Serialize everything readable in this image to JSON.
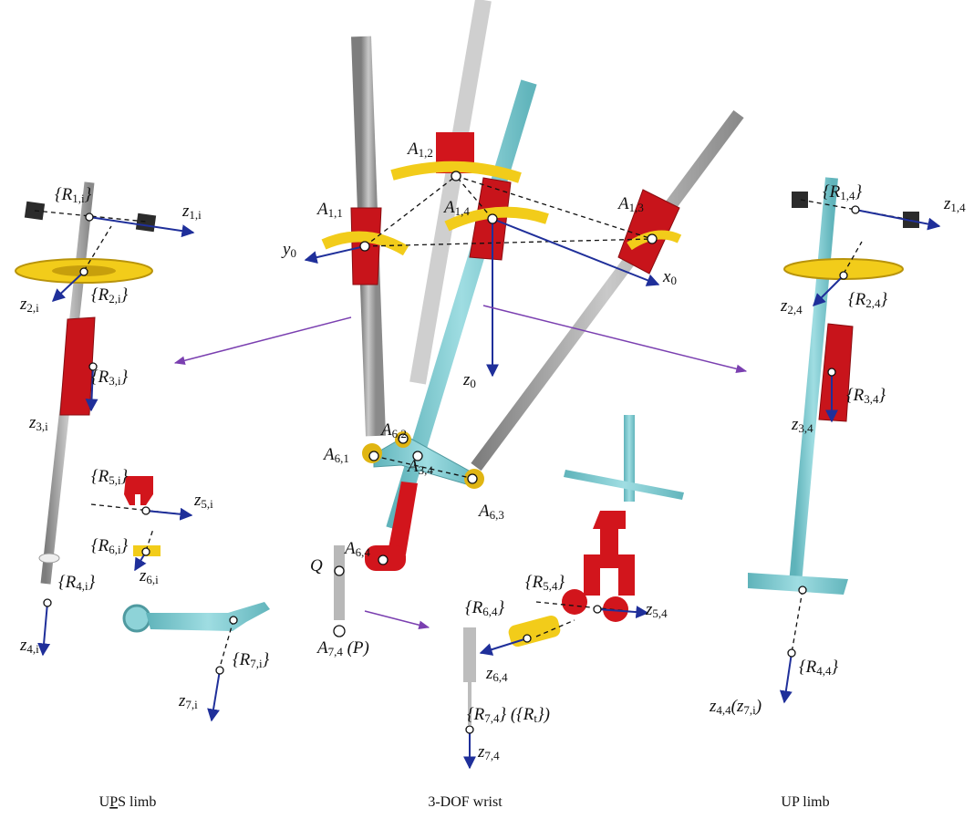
{
  "labels": [
    {
      "parts": [
        {
          "text": "{R"
        },
        {
          "sub": "1,i"
        },
        {
          "text": "}"
        }
      ]
    },
    {
      "parts": [
        {
          "text": "z"
        },
        {
          "sub": "1,i"
        }
      ]
    },
    {
      "parts": [
        {
          "text": "z"
        },
        {
          "sub": "2,i"
        }
      ]
    },
    {
      "parts": [
        {
          "text": "{R"
        },
        {
          "sub": "2,i"
        },
        {
          "text": "}"
        }
      ]
    },
    {
      "parts": [
        {
          "text": "{R"
        },
        {
          "sub": "3,i"
        },
        {
          "text": "}"
        }
      ]
    },
    {
      "parts": [
        {
          "text": "z"
        },
        {
          "sub": "3,i"
        }
      ]
    },
    {
      "parts": [
        {
          "text": "{R"
        },
        {
          "sub": "5,i"
        },
        {
          "text": "}"
        }
      ]
    },
    {
      "parts": [
        {
          "text": "z"
        },
        {
          "sub": "5,i"
        }
      ]
    },
    {
      "parts": [
        {
          "text": "{R"
        },
        {
          "sub": "6,i"
        },
        {
          "text": "}"
        }
      ]
    },
    {
      "parts": [
        {
          "text": "z"
        },
        {
          "sub": "6,i"
        }
      ]
    },
    {
      "parts": [
        {
          "text": "{R"
        },
        {
          "sub": "4,i"
        },
        {
          "text": "}"
        }
      ]
    },
    {
      "parts": [
        {
          "text": "z"
        },
        {
          "sub": "4,i"
        }
      ]
    },
    {
      "parts": [
        {
          "text": "{R"
        },
        {
          "sub": "7,i"
        },
        {
          "text": "}"
        }
      ]
    },
    {
      "parts": [
        {
          "text": "z"
        },
        {
          "sub": "7,i"
        }
      ]
    },
    {
      "parts": [
        {
          "text": "A"
        },
        {
          "sub": "1,2"
        }
      ]
    },
    {
      "parts": [
        {
          "text": "A"
        },
        {
          "sub": "1,1"
        }
      ]
    },
    {
      "parts": [
        {
          "text": "A"
        },
        {
          "sub": "1,4"
        }
      ]
    },
    {
      "parts": [
        {
          "text": "A"
        },
        {
          "sub": "1,3"
        }
      ]
    },
    {
      "parts": [
        {
          "text": "y"
        },
        {
          "sub": "0"
        }
      ]
    },
    {
      "parts": [
        {
          "text": "x"
        },
        {
          "sub": "0"
        }
      ]
    },
    {
      "parts": [
        {
          "text": "z"
        },
        {
          "sub": "0"
        }
      ]
    },
    {
      "parts": [
        {
          "text": "A"
        },
        {
          "sub": "6,2"
        }
      ]
    },
    {
      "parts": [
        {
          "text": "A"
        },
        {
          "sub": "6,1"
        }
      ]
    },
    {
      "parts": [
        {
          "text": "A"
        },
        {
          "sub": "3,4"
        }
      ]
    },
    {
      "parts": [
        {
          "text": "A"
        },
        {
          "sub": "6,3"
        }
      ]
    },
    {
      "parts": [
        {
          "text": "A"
        },
        {
          "sub": "6,4"
        }
      ]
    },
    {
      "parts": [
        {
          "text": "Q"
        }
      ]
    },
    {
      "parts": [
        {
          "text": "A"
        },
        {
          "sub": "7,4"
        },
        {
          "text": " (P)"
        }
      ]
    },
    {
      "parts": [
        {
          "text": "{R"
        },
        {
          "sub": "5,4"
        },
        {
          "text": "}"
        }
      ]
    },
    {
      "parts": [
        {
          "text": "z"
        },
        {
          "sub": "5,4"
        }
      ]
    },
    {
      "parts": [
        {
          "text": "{R"
        },
        {
          "sub": "6,4"
        },
        {
          "text": "}"
        }
      ]
    },
    {
      "parts": [
        {
          "text": "z"
        },
        {
          "sub": "6,4"
        }
      ]
    },
    {
      "parts": [
        {
          "text": "{R"
        },
        {
          "sub": "7,4"
        },
        {
          "text": "} ({R"
        },
        {
          "sub": "t"
        },
        {
          "text": "})"
        }
      ]
    },
    {
      "parts": [
        {
          "text": "z"
        },
        {
          "sub": "7,4"
        }
      ]
    },
    {
      "parts": [
        {
          "text": "{R"
        },
        {
          "sub": "1,4"
        },
        {
          "text": "}"
        }
      ]
    },
    {
      "parts": [
        {
          "text": "z"
        },
        {
          "sub": "1,4"
        }
      ]
    },
    {
      "parts": [
        {
          "text": "z"
        },
        {
          "sub": "2,4"
        }
      ]
    },
    {
      "parts": [
        {
          "text": "{R"
        },
        {
          "sub": "2,4"
        },
        {
          "text": "}"
        }
      ]
    },
    {
      "parts": [
        {
          "text": "{R"
        },
        {
          "sub": "3,4"
        },
        {
          "text": "}"
        }
      ]
    },
    {
      "parts": [
        {
          "text": "z"
        },
        {
          "sub": "3,4"
        }
      ]
    },
    {
      "parts": [
        {
          "text": "{R"
        },
        {
          "sub": "4,4"
        },
        {
          "text": "}"
        }
      ]
    },
    {
      "parts": [
        {
          "text": "z"
        },
        {
          "sub": "4,4"
        },
        {
          "text": "(z"
        },
        {
          "sub": "7,i"
        },
        {
          "text": ")"
        }
      ]
    }
  ],
  "captions": [
    {
      "parts": [
        {
          "text": "U"
        },
        {
          "u": "P"
        },
        {
          "text": "S limb"
        }
      ]
    },
    {
      "parts": [
        {
          "text": "3-DOF wrist"
        }
      ]
    },
    {
      "parts": [
        {
          "text": "UP limb"
        }
      ]
    }
  ]
}
